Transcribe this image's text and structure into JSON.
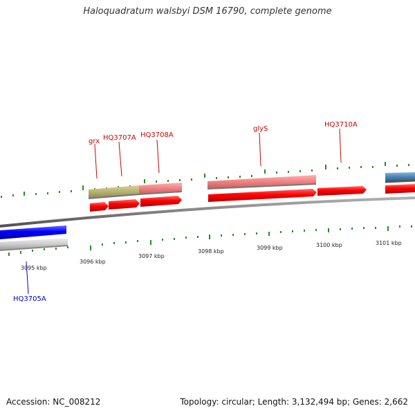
{
  "title": "Haloquadratum walsbyi DSM 16790, complete genome",
  "footer": {
    "accession": "Accession: NC_008212",
    "topology": "Topology: circular; Length: 3,132,494 bp; Genes: 2,662"
  },
  "ticks": [
    "3095 kbp",
    "3096 kbp",
    "3097 kbp",
    "3098 kbp",
    "3099 kbp",
    "3100 kbp",
    "3101 kbp"
  ],
  "genes": [
    {
      "name": "grx",
      "strand": "+",
      "color": "#cc0000"
    },
    {
      "name": "HQ3707A",
      "strand": "+",
      "color": "#cc0000"
    },
    {
      "name": "HQ3708A",
      "strand": "+",
      "color": "#cc0000"
    },
    {
      "name": "glyS",
      "strand": "+",
      "color": "#cc0000"
    },
    {
      "name": "HQ3710A",
      "strand": "+",
      "color": "#cc0000"
    },
    {
      "name": "HQ3705A",
      "strand": "-",
      "color": "#0000cc"
    }
  ],
  "colors": {
    "forward_cds": "#ee0000",
    "forward_function_light": "#ee8080",
    "forward_function_olive": "#b8b070",
    "reverse_cds": "#0000ee",
    "reverse_function": "#c8c8c8",
    "blue_feature": "#4682b4",
    "backbone": "#808080",
    "tick": "#228b22"
  }
}
